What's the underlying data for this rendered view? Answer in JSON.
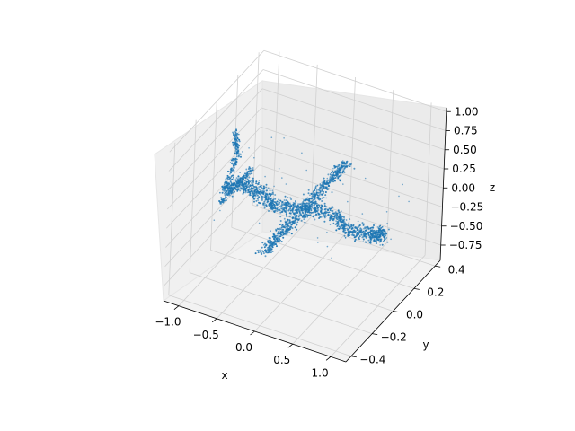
{
  "chart_data": {
    "type": "scatter",
    "projection": "3d",
    "title": "",
    "xlabel": "x",
    "ylabel": "y",
    "zlabel": "z",
    "xlim": [
      -1.2,
      1.2
    ],
    "ylim": [
      -0.45,
      0.45
    ],
    "zlim": [
      -0.95,
      1.05
    ],
    "xticks": [
      -1.0,
      -0.5,
      0.0,
      0.5,
      1.0
    ],
    "xtick_labels": [
      "−1.0",
      "−0.5",
      "0.0",
      "0.5",
      "1.0"
    ],
    "yticks": [
      -0.4,
      -0.2,
      0.0,
      0.2,
      0.4
    ],
    "ytick_labels": [
      "−0.4",
      "−0.2",
      "0.0",
      "0.2",
      "0.4"
    ],
    "zticks": [
      -0.75,
      -0.5,
      -0.25,
      0.0,
      0.25,
      0.5,
      0.75,
      1.0
    ],
    "ztick_labels": [
      "−0.75",
      "−0.50",
      "−0.25",
      "0.00",
      "0.25",
      "0.50",
      "0.75",
      "1.00"
    ],
    "grid": true,
    "legend": "none",
    "marker_color": "#1f77b4",
    "series": [
      {
        "description_parts": [
          "fuselage",
          "wings",
          "vertical tail",
          "horizontal tail"
        ],
        "points": [
          [
            -1.05,
            0.0,
            -0.1
          ],
          [
            -0.9,
            0.05,
            -0.05
          ],
          [
            -0.6,
            0.0,
            0.0
          ],
          [
            -0.3,
            -0.05,
            0.0
          ],
          [
            0.0,
            0.0,
            0.0
          ],
          [
            0.3,
            0.05,
            -0.05
          ],
          [
            0.6,
            0.0,
            -0.1
          ],
          [
            0.9,
            0.0,
            -0.05
          ],
          [
            1.05,
            0.0,
            0.0
          ],
          [
            0.0,
            0.4,
            0.0
          ],
          [
            0.0,
            0.2,
            0.0
          ],
          [
            0.0,
            -0.2,
            0.0
          ],
          [
            0.0,
            -0.4,
            0.0
          ],
          [
            -0.9,
            0.0,
            0.4
          ],
          [
            -0.95,
            0.0,
            0.7
          ],
          [
            -0.9,
            0.15,
            0.0
          ],
          [
            -0.9,
            -0.15,
            0.0
          ]
        ]
      }
    ]
  }
}
